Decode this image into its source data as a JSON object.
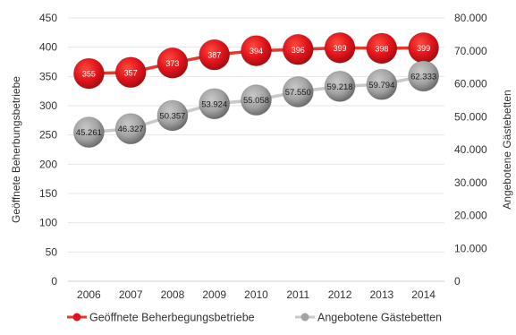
{
  "chart_data": {
    "type": "line",
    "categories": [
      "2006",
      "2007",
      "2008",
      "2009",
      "2010",
      "2011",
      "2012",
      "2013",
      "2014"
    ],
    "series": [
      {
        "name": "Geöffnete Beherbegungsbetriebe",
        "axis": "left",
        "color": "#e0141c",
        "line_color": "#e33a30",
        "values": [
          355,
          357,
          373,
          387,
          394,
          396,
          399,
          398,
          399
        ],
        "labels": [
          "355",
          "357",
          "373",
          "387",
          "394",
          "396",
          "399",
          "398",
          "399"
        ]
      },
      {
        "name": "Angebotene Gästebetten",
        "axis": "right",
        "color": "#a3a3a3",
        "line_color": "#c9c9c9",
        "values": [
          45261,
          46327,
          50357,
          53924,
          55058,
          57550,
          59218,
          59794,
          62333
        ],
        "labels": [
          "45.261",
          "46.327",
          "50.357",
          "53.924",
          "55.058",
          "57.550",
          "59.218",
          "59.794",
          "62.333"
        ]
      }
    ],
    "y_left": {
      "label": "Geöffnete Beherbungsbetriebe",
      "lim": [
        0,
        450
      ],
      "ticks": [
        0,
        50,
        100,
        150,
        200,
        250,
        300,
        350,
        400,
        450
      ],
      "tick_labels": [
        "0",
        "50",
        "100",
        "150",
        "200",
        "250",
        "300",
        "350",
        "400",
        "450"
      ]
    },
    "y_right": {
      "label": "Angebotene Gästebetten",
      "lim": [
        0,
        80000
      ],
      "ticks": [
        0,
        10000,
        20000,
        30000,
        40000,
        50000,
        60000,
        70000,
        80000
      ],
      "tick_labels": [
        "0",
        "10.000",
        "20.000",
        "30.000",
        "40.000",
        "50.000",
        "60.000",
        "70.000",
        "80.000"
      ]
    },
    "grid": true,
    "legend_position": "bottom"
  }
}
